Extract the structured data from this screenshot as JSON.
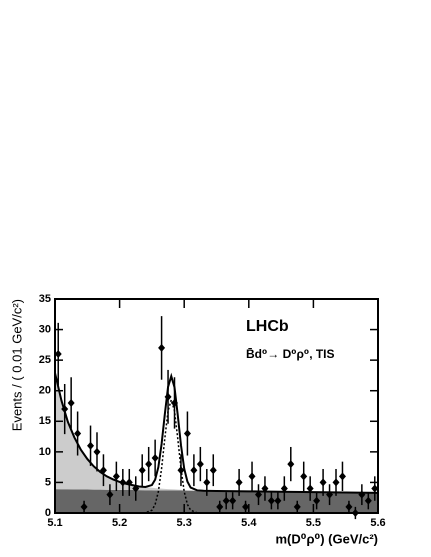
{
  "chart_data": {
    "type": "histogram-fit",
    "title": "LHCb",
    "subtitle": "B̄d⁰→ D⁰ρ⁰, TIS",
    "x_label": "m(D⁰ρ⁰) (GeV/c²)",
    "y_label": "Events / ( 0.01 GeV/c²)",
    "xlim": [
      5.1,
      5.6
    ],
    "ylim": [
      0,
      35
    ],
    "xticks": [
      5.1,
      5.2,
      5.3,
      5.4,
      5.5,
      5.6
    ],
    "yticks": [
      0,
      5,
      10,
      15,
      20,
      25,
      30,
      35
    ],
    "points": {
      "color": "#000000",
      "x": [
        5.105,
        5.115,
        5.125,
        5.135,
        5.145,
        5.155,
        5.165,
        5.175,
        5.185,
        5.195,
        5.205,
        5.215,
        5.225,
        5.235,
        5.245,
        5.255,
        5.265,
        5.275,
        5.285,
        5.295,
        5.305,
        5.315,
        5.325,
        5.335,
        5.345,
        5.355,
        5.365,
        5.375,
        5.385,
        5.395,
        5.405,
        5.415,
        5.425,
        5.435,
        5.445,
        5.455,
        5.465,
        5.475,
        5.485,
        5.495,
        5.505,
        5.515,
        5.525,
        5.535,
        5.545,
        5.555,
        5.565,
        5.575,
        5.585,
        5.595
      ],
      "values": [
        26,
        17,
        18,
        13,
        1,
        11,
        10,
        7,
        3,
        6,
        5,
        5,
        4,
        7,
        8,
        9,
        27,
        19,
        18,
        7,
        13,
        7,
        8,
        5,
        7,
        1,
        2,
        2,
        5,
        1,
        6,
        3,
        4,
        2,
        2,
        4,
        8,
        1,
        6,
        4,
        2,
        5,
        3,
        5,
        6,
        1,
        0,
        3,
        2,
        4
      ],
      "errors": [
        5.1,
        4.1,
        4.2,
        3.6,
        1,
        3.3,
        3.2,
        2.6,
        1.7,
        2.4,
        2.2,
        2.2,
        2,
        2.6,
        2.8,
        3,
        5.2,
        4.4,
        4.2,
        2.6,
        3.6,
        2.6,
        2.8,
        2.2,
        2.6,
        1,
        1.4,
        1.4,
        2.2,
        1,
        2.4,
        1.7,
        2,
        1.4,
        1.4,
        2,
        2.8,
        1,
        2.4,
        2,
        1.4,
        2.2,
        1.7,
        2.2,
        2.4,
        1,
        1,
        1.7,
        1.4,
        2
      ]
    },
    "curve_x": [
      5.1,
      5.11,
      5.12,
      5.13,
      5.14,
      5.15,
      5.16,
      5.17,
      5.18,
      5.19,
      5.2,
      5.21,
      5.22,
      5.23,
      5.24,
      5.25,
      5.255,
      5.26,
      5.265,
      5.27,
      5.275,
      5.28,
      5.285,
      5.29,
      5.295,
      5.3,
      5.305,
      5.31,
      5.32,
      5.33,
      5.34,
      5.35,
      5.4,
      5.45,
      5.5,
      5.55,
      5.6
    ],
    "series": [
      {
        "color": "#666666",
        "style": "filled",
        "values": [
          3.9,
          3.89,
          3.88,
          3.86,
          3.85,
          3.84,
          3.83,
          3.82,
          3.8,
          3.79,
          3.78,
          3.77,
          3.76,
          3.74,
          3.73,
          3.72,
          3.71,
          3.71,
          3.7,
          3.7,
          3.69,
          3.68,
          3.68,
          3.67,
          3.67,
          3.66,
          3.65,
          3.65,
          3.64,
          3.62,
          3.61,
          3.6,
          3.54,
          3.48,
          3.42,
          3.36,
          3.3
        ]
      },
      {
        "color": "#cccccc",
        "style": "filled",
        "values": [
          19,
          14.5,
          11,
          8.5,
          6.5,
          5,
          3.8,
          2.9,
          2.2,
          1.7,
          1.3,
          1,
          0.8,
          0.6,
          0.5,
          0.4,
          0.35,
          0.3,
          0.28,
          0.25,
          0.22,
          0.2,
          0.18,
          0.15,
          0.13,
          0.1,
          0.08,
          0.06,
          0.04,
          0.02,
          0.01,
          0,
          0,
          0,
          0,
          0,
          0
        ]
      },
      {
        "color": "#000000",
        "style": "dotted",
        "values": [
          0,
          0,
          0,
          0,
          0,
          0,
          0,
          0,
          0,
          0,
          0,
          0,
          0,
          0,
          0.03,
          0.45,
          1.4,
          3.5,
          7.3,
          12.2,
          16.7,
          18.5,
          16.7,
          12.2,
          7.3,
          3.5,
          1.4,
          0.45,
          0.03,
          0,
          0,
          0,
          0,
          0,
          0,
          0,
          0
        ]
      }
    ]
  }
}
